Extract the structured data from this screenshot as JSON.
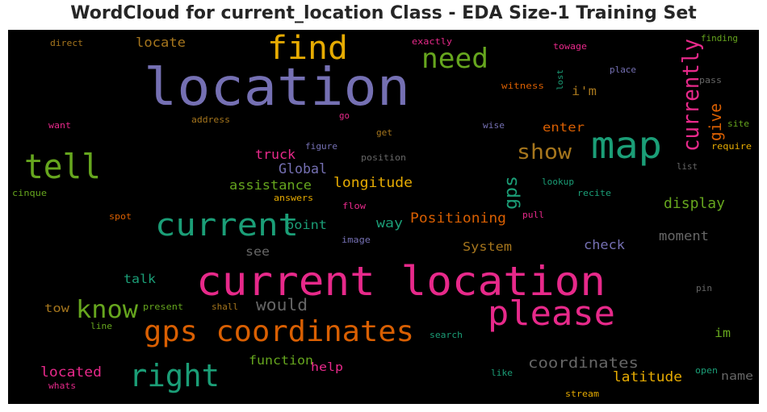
{
  "chart_data": {
    "type": "wordcloud",
    "title": "WordCloud for current_location Class - EDA Size-1 Training Set",
    "background": "#000000",
    "words": [
      {
        "text": "location",
        "color": "#7570b3"
      },
      {
        "text": "current location",
        "color": "#e7298a"
      },
      {
        "text": "gps coordinates",
        "color": "#d95f02"
      },
      {
        "text": "map",
        "color": "#1b9e77"
      },
      {
        "text": "find",
        "color": "#e6ab02"
      },
      {
        "text": "please",
        "color": "#e7298a"
      },
      {
        "text": "current",
        "color": "#1b9e77"
      },
      {
        "text": "tell",
        "color": "#66a61e"
      },
      {
        "text": "right",
        "color": "#1b9e77"
      },
      {
        "text": "need",
        "color": "#66a61e"
      },
      {
        "text": "know",
        "color": "#66a61e"
      },
      {
        "text": "show",
        "color": "#a6761d"
      },
      {
        "text": "currently",
        "color": "#e7298a"
      },
      {
        "text": "give",
        "color": "#d95f02"
      },
      {
        "text": "gps",
        "color": "#1b9e77"
      },
      {
        "text": "coordinates",
        "color": "#666666"
      },
      {
        "text": "would",
        "color": "#666666"
      },
      {
        "text": "latitude",
        "color": "#e6ab02"
      },
      {
        "text": "Positioning",
        "color": "#d95f02"
      },
      {
        "text": "display",
        "color": "#66a61e"
      },
      {
        "text": "longitude",
        "color": "#e6ab02"
      },
      {
        "text": "located",
        "color": "#e7298a"
      },
      {
        "text": "locate",
        "color": "#a6761d"
      },
      {
        "text": "assistance",
        "color": "#66a61e"
      },
      {
        "text": "Global",
        "color": "#7570b3"
      },
      {
        "text": "truck",
        "color": "#e7298a"
      },
      {
        "text": "enter",
        "color": "#d95f02"
      },
      {
        "text": "way",
        "color": "#1b9e77"
      },
      {
        "text": "moment",
        "color": "#666666"
      },
      {
        "text": "check",
        "color": "#7570b3"
      },
      {
        "text": "System",
        "color": "#a6761d"
      },
      {
        "text": "function",
        "color": "#66a61e"
      },
      {
        "text": "name",
        "color": "#666666"
      },
      {
        "text": "talk",
        "color": "#1b9e77"
      },
      {
        "text": "see",
        "color": "#666666"
      },
      {
        "text": "point",
        "color": "#1b9e77"
      },
      {
        "text": "im",
        "color": "#66a61e"
      },
      {
        "text": "i'm",
        "color": "#a6761d"
      },
      {
        "text": "help",
        "color": "#e7298a"
      },
      {
        "text": "tow",
        "color": "#a6761d"
      },
      {
        "text": "direct",
        "color": "#a6761d"
      },
      {
        "text": "exactly",
        "color": "#e7298a"
      },
      {
        "text": "towage",
        "color": "#e7298a"
      },
      {
        "text": "finding",
        "color": "#66a61e"
      },
      {
        "text": "place",
        "color": "#7570b3"
      },
      {
        "text": "witness",
        "color": "#d95f02"
      },
      {
        "text": "lost",
        "color": "#1b9e77"
      },
      {
        "text": "pass",
        "color": "#666666"
      },
      {
        "text": "want",
        "color": "#e7298a"
      },
      {
        "text": "address",
        "color": "#a6761d"
      },
      {
        "text": "go",
        "color": "#e7298a"
      },
      {
        "text": "get",
        "color": "#a6761d"
      },
      {
        "text": "wise",
        "color": "#7570b3"
      },
      {
        "text": "site",
        "color": "#66a61e"
      },
      {
        "text": "require",
        "color": "#e6ab02"
      },
      {
        "text": "figure",
        "color": "#7570b3"
      },
      {
        "text": "position",
        "color": "#666666"
      },
      {
        "text": "list",
        "color": "#666666"
      },
      {
        "text": "cinque",
        "color": "#66a61e"
      },
      {
        "text": "answers",
        "color": "#e6ab02"
      },
      {
        "text": "lookup",
        "color": "#1b9e77"
      },
      {
        "text": "recite",
        "color": "#1b9e77"
      },
      {
        "text": "flow",
        "color": "#e7298a"
      },
      {
        "text": "spot",
        "color": "#d95f02"
      },
      {
        "text": "pull",
        "color": "#e7298a"
      },
      {
        "text": "image",
        "color": "#7570b3"
      },
      {
        "text": "pin",
        "color": "#666666"
      },
      {
        "text": "present",
        "color": "#66a61e"
      },
      {
        "text": "shall",
        "color": "#a6761d"
      },
      {
        "text": "line",
        "color": "#66a61e"
      },
      {
        "text": "search",
        "color": "#1b9e77"
      },
      {
        "text": "like",
        "color": "#1b9e77"
      },
      {
        "text": "open",
        "color": "#1b9e77"
      },
      {
        "text": "whats",
        "color": "#e7298a"
      },
      {
        "text": "stream",
        "color": "#e6ab02"
      }
    ]
  }
}
